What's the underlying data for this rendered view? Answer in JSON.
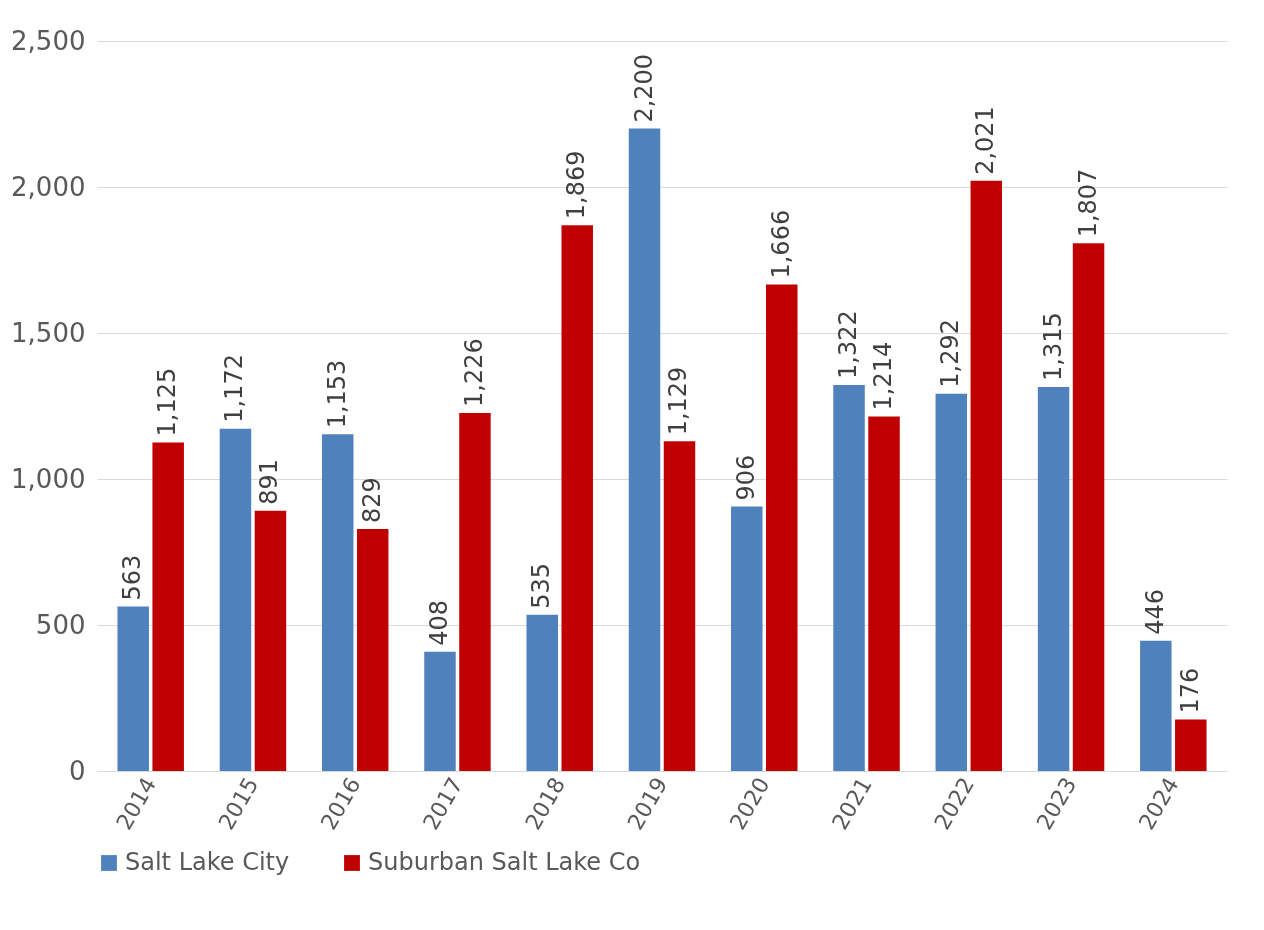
{
  "chart_data": {
    "type": "bar",
    "categories": [
      "2014",
      "2015",
      "2016",
      "2017",
      "2018",
      "2019",
      "2020",
      "2021",
      "2022",
      "2023",
      "2024"
    ],
    "series": [
      {
        "name": "Salt Lake City",
        "color": "#4f81bd",
        "values": [
          563,
          1172,
          1153,
          408,
          535,
          2200,
          906,
          1322,
          1292,
          1315,
          446
        ],
        "value_labels": [
          "563",
          "1,172",
          "1,153",
          "408",
          "535",
          "2,200",
          "906",
          "1,322",
          "1,292",
          "1,315",
          "446"
        ]
      },
      {
        "name": "Suburban Salt Lake Co",
        "color": "#c00000",
        "values": [
          1125,
          891,
          829,
          1226,
          1869,
          1129,
          1666,
          1214,
          2021,
          1807,
          176
        ],
        "value_labels": [
          "1,125",
          "891",
          "829",
          "1,226",
          "1,869",
          "1,129",
          "1,666",
          "1,214",
          "2,021",
          "1,807",
          "176"
        ]
      }
    ],
    "ylim": [
      0,
      2500
    ],
    "yticks": [
      0,
      {
        "value": 500,
        "label": "500"
      },
      {
        "value": 1000,
        "label": "1,000"
      },
      {
        "value": 1500,
        "label": "1,500"
      },
      {
        "value": 2000,
        "label": "2,000"
      },
      {
        "value": 2500,
        "label": "2,500"
      }
    ],
    "grid": "y",
    "legend": "bottom"
  }
}
